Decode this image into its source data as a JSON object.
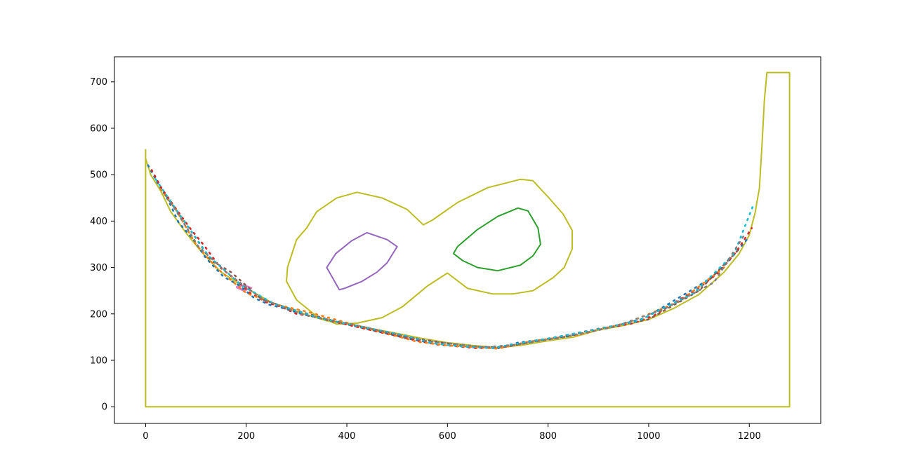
{
  "chart_data": {
    "type": "line",
    "title": "",
    "xlabel": "",
    "ylabel": "",
    "xlim": [
      -62,
      1342
    ],
    "ylim": [
      -36,
      754
    ],
    "x_ticks": [
      0,
      200,
      400,
      600,
      800,
      1000,
      1200
    ],
    "y_ticks": [
      0,
      100,
      200,
      300,
      400,
      500,
      600,
      700
    ],
    "x_tick_labels": [
      "0",
      "200",
      "400",
      "600",
      "800",
      "1000",
      "1200"
    ],
    "y_tick_labels": [
      "0",
      "100",
      "200",
      "300",
      "400",
      "500",
      "600",
      "700"
    ],
    "grid": false,
    "legend": "none",
    "series": [
      {
        "color": "#bcbd22",
        "x": [
          0,
          0,
          1280,
          1280,
          1235,
          1230,
          1225,
          1220,
          1215,
          1212
        ],
        "y": [
          555,
          0,
          0,
          720,
          720,
          660,
          560,
          470,
          440,
          420
        ]
      },
      {
        "color": "#bcbd22",
        "x": [
          0,
          10,
          30,
          50,
          80,
          110,
          150,
          200,
          250,
          300,
          360,
          400,
          450,
          500,
          550,
          600,
          650,
          700,
          750,
          800,
          850,
          900,
          950,
          1000,
          1050,
          1100,
          1150,
          1180,
          1200,
          1212
        ],
        "y": [
          535,
          500,
          465,
          420,
          375,
          335,
          290,
          255,
          225,
          205,
          185,
          180,
          168,
          158,
          147,
          138,
          132,
          127,
          133,
          142,
          150,
          165,
          175,
          188,
          212,
          242,
          290,
          330,
          370,
          420
        ]
      },
      {
        "color": "#bcbd22",
        "x": [
          380,
          420,
          470,
          520,
          552,
          570,
          620,
          680,
          745,
          770,
          800,
          830,
          848,
          848,
          832,
          810,
          770,
          730,
          690,
          640,
          600,
          560,
          510,
          470,
          420,
          380,
          340,
          300,
          280,
          282,
          300,
          320,
          340,
          380
        ],
        "y": [
          450,
          462,
          450,
          425,
          392,
          402,
          440,
          472,
          490,
          487,
          452,
          415,
          380,
          340,
          300,
          278,
          250,
          243,
          243,
          255,
          288,
          260,
          215,
          192,
          180,
          178,
          195,
          230,
          270,
          300,
          360,
          385,
          420,
          450
        ]
      },
      {
        "color": "#2ca02c",
        "x": [
          620,
          660,
          700,
          740,
          760,
          780,
          785,
          770,
          745,
          700,
          660,
          630,
          612,
          620
        ],
        "y": [
          345,
          382,
          410,
          428,
          422,
          385,
          350,
          325,
          305,
          293,
          300,
          315,
          330,
          345
        ]
      },
      {
        "color": "#9467bd",
        "x": [
          410,
          440,
          480,
          500,
          480,
          460,
          430,
          395,
          385,
          360,
          378,
          410
        ],
        "y": [
          358,
          375,
          360,
          345,
          310,
          290,
          270,
          255,
          252,
          300,
          330,
          358
        ]
      },
      {
        "color": "#e377c2",
        "x": [
          180,
          195,
          210,
          195,
          180
        ],
        "y": [
          258,
          262,
          256,
          250,
          258
        ]
      },
      {
        "color": "#1f77b4",
        "x": [
          5,
          25,
          45,
          65,
          95,
          120,
          155,
          185,
          215,
          245,
          275,
          310,
          370,
          410,
          450,
          490,
          530,
          570,
          610,
          650,
          700,
          740,
          790,
          840,
          890,
          940,
          990,
          1040,
          1080,
          1120,
          1160,
          1195
        ],
        "y": [
          520,
          480,
          445,
          398,
          360,
          320,
          280,
          262,
          235,
          220,
          212,
          200,
          185,
          175,
          165,
          155,
          145,
          137,
          132,
          128,
          126,
          138,
          145,
          152,
          166,
          176,
          190,
          222,
          248,
          275,
          315,
          360
        ]
      },
      {
        "color": "#d62728",
        "x": [
          12,
          32,
          58,
          88,
          118,
          148,
          178,
          208,
          240,
          270,
          300,
          330,
          380,
          420,
          460,
          500,
          540,
          580,
          620,
          660,
          720,
          770,
          820,
          870,
          920,
          970,
          1010,
          1060,
          1100,
          1140,
          1175,
          1205
        ],
        "y": [
          510,
          470,
          430,
          385,
          345,
          300,
          275,
          245,
          225,
          215,
          200,
          195,
          182,
          172,
          162,
          152,
          142,
          134,
          130,
          126,
          130,
          140,
          148,
          158,
          170,
          180,
          196,
          230,
          256,
          290,
          335,
          385
        ]
      },
      {
        "color": "#ff7f0e",
        "x": [
          30,
          60,
          100,
          140,
          200,
          260,
          320,
          420,
          480,
          540,
          600,
          660,
          700,
          760,
          860,
          960,
          1060,
          1150
        ],
        "y": [
          468,
          425,
          350,
          300,
          245,
          220,
          205,
          175,
          158,
          140,
          132,
          128,
          125,
          140,
          155,
          182,
          226,
          300
        ]
      },
      {
        "color": "#8c564b",
        "x": [
          40,
          80,
          130,
          170,
          230,
          290,
          390,
          440,
          520,
          590,
          640,
          710,
          800,
          900,
          1000,
          1100,
          1180
        ],
        "y": [
          455,
          395,
          315,
          290,
          232,
          210,
          180,
          170,
          150,
          138,
          130,
          128,
          146,
          168,
          188,
          250,
          340
        ]
      },
      {
        "color": "#17becf",
        "x": [
          20,
          70,
          125,
          190,
          255,
          350,
          430,
          510,
          575,
          630,
          690,
          780,
          880,
          980,
          1090,
          1170,
          1210
        ],
        "y": [
          490,
          410,
          325,
          262,
          222,
          190,
          172,
          155,
          136,
          130,
          127,
          143,
          163,
          185,
          245,
          330,
          440
        ]
      },
      {
        "color": "#7f7f7f",
        "x": [
          50,
          105,
          165,
          235,
          315,
          400,
          470,
          555,
          615,
          675,
          730,
          830,
          930,
          1030,
          1130,
          1190
        ],
        "y": [
          440,
          345,
          285,
          230,
          198,
          180,
          163,
          142,
          135,
          128,
          133,
          150,
          172,
          210,
          268,
          370
        ]
      }
    ]
  }
}
